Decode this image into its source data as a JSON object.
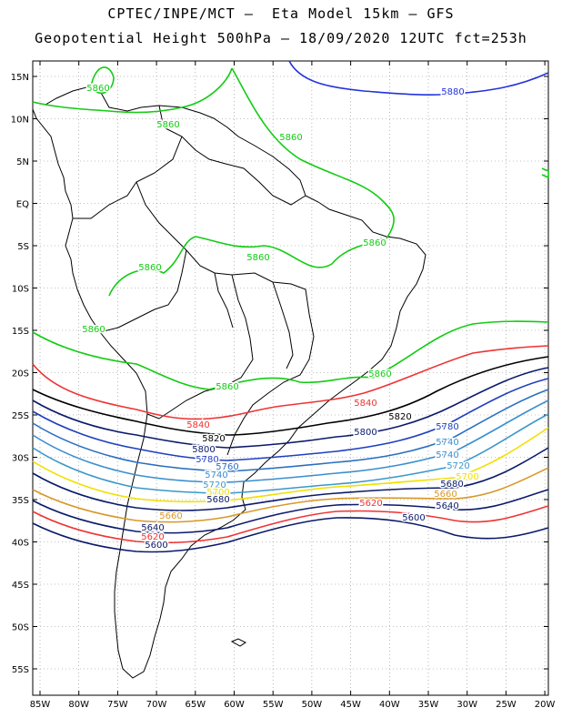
{
  "header": {
    "line1": "CPTEC/INPE/MCT –  Eta Model 15km – GFS",
    "line2": "Geopotential Height 500hPa – 18/09/2020 12UTC fct=253h"
  },
  "axes": {
    "lat_labels": [
      "15N",
      "10N",
      "5N",
      "EQ",
      "5S",
      "10S",
      "15S",
      "20S",
      "25S",
      "30S",
      "35S",
      "40S",
      "45S",
      "50S",
      "55S"
    ],
    "lon_labels": [
      "85W",
      "80W",
      "75W",
      "70W",
      "65W",
      "60W",
      "55W",
      "50W",
      "45W",
      "40W",
      "35W",
      "30W",
      "25W",
      "20W"
    ],
    "grid": "dotted"
  },
  "colors": {
    "5880": "#2233dd",
    "5860": "#11cc11",
    "5840": "#ee3333",
    "5820": "#000000",
    "5800": "#0a1a6a",
    "5780": "#1f3fbf",
    "5760": "#2a6fc0",
    "5740": "#3a8ed0",
    "5720": "#3a98c8",
    "5700": "#f0e000",
    "5680": "#0a1a6a",
    "5660": "#d89828",
    "5640": "#0a1a6a",
    "5620": "#ee3333",
    "5600": "#0a1a6a"
  },
  "contour_labels": [
    {
      "value": "5880",
      "level": "5880"
    },
    {
      "value": "5860",
      "level": "5860"
    },
    {
      "value": "5860",
      "level": "5860"
    },
    {
      "value": "5860",
      "level": "5860"
    },
    {
      "value": "5860",
      "level": "5860"
    },
    {
      "value": "5860",
      "level": "5860"
    },
    {
      "value": "5860",
      "level": "5860"
    },
    {
      "value": "5860",
      "level": "5860"
    },
    {
      "value": "5860",
      "level": "5860"
    },
    {
      "value": "5860",
      "level": "5860"
    },
    {
      "value": "5840",
      "level": "5840"
    },
    {
      "value": "5840",
      "level": "5840"
    },
    {
      "value": "5820",
      "level": "5820"
    },
    {
      "value": "5820",
      "level": "5820"
    },
    {
      "value": "5800",
      "level": "5800"
    },
    {
      "value": "5800",
      "level": "5800"
    },
    {
      "value": "5780",
      "level": "5780"
    },
    {
      "value": "5780",
      "level": "5780"
    },
    {
      "value": "5760",
      "level": "5760"
    },
    {
      "value": "5740",
      "level": "5740"
    },
    {
      "value": "5740",
      "level": "5740"
    },
    {
      "value": "5740",
      "level": "5740"
    },
    {
      "value": "5720",
      "level": "5720"
    },
    {
      "value": "5720",
      "level": "5720"
    },
    {
      "value": "5700",
      "level": "5700"
    },
    {
      "value": "5700",
      "level": "5700"
    },
    {
      "value": "5680",
      "level": "5680"
    },
    {
      "value": "5680",
      "level": "5680"
    },
    {
      "value": "5660",
      "level": "5660"
    },
    {
      "value": "5660",
      "level": "5660"
    },
    {
      "value": "5640",
      "level": "5640"
    },
    {
      "value": "5640",
      "level": "5640"
    },
    {
      "value": "5620",
      "level": "5620"
    },
    {
      "value": "5620",
      "level": "5620"
    },
    {
      "value": "5600",
      "level": "5600"
    },
    {
      "value": "5600",
      "level": "5600"
    }
  ]
}
